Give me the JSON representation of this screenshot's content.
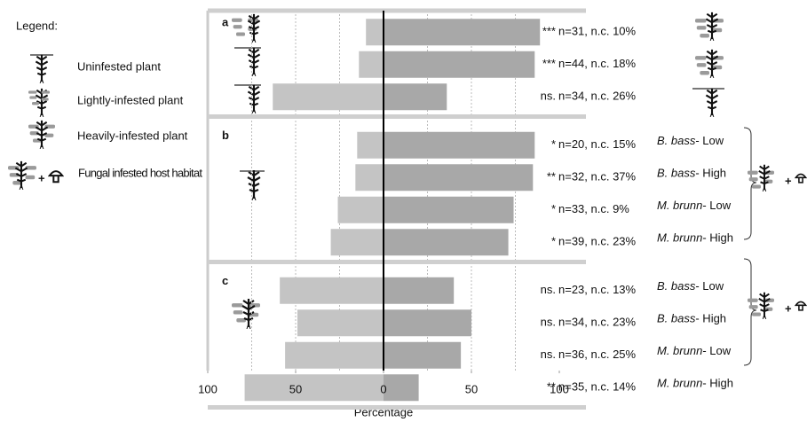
{
  "chart_data": {
    "type": "diverging-bar",
    "xlabel": "Percentage",
    "xlim": [
      -100,
      100
    ],
    "xticks": [
      {
        "value": -100,
        "label": "100"
      },
      {
        "value": -50,
        "label": "50"
      },
      0,
      50,
      {
        "value": 100,
        "label": "100"
      }
    ],
    "xgrid": [
      -75,
      -50,
      -25,
      25,
      50,
      75
    ],
    "panels": [
      {
        "label": "a",
        "rows": 3
      },
      {
        "label": "b",
        "rows": 4
      },
      {
        "label": "c",
        "rows": 4
      }
    ],
    "series": [
      {
        "color": "#c4c4c4",
        "values": [
          10,
          14,
          63,
          15,
          16,
          26,
          30,
          59,
          49,
          56,
          79
        ]
      },
      {
        "color": "#a8a8a8",
        "values": [
          89,
          86,
          36,
          86,
          85,
          74,
          71,
          40,
          50,
          44,
          20
        ]
      }
    ],
    "significance": [
      "***",
      "***",
      "ns.",
      "*",
      "**",
      "*",
      "*",
      "ns.",
      "ns.",
      "ns.",
      "**"
    ],
    "counts": [
      "n=31, n.c. 10%",
      "n=44, n.c. 18%",
      "n=34, n.c. 26%",
      "n=20, n.c. 15%",
      "n=32, n.c. 37%",
      "n=33, n.c. 9%",
      "n=39, n.c. 23%",
      "n=23, n.c. 13%",
      "n=34, n.c. 23%",
      "n=36, n.c. 25%",
      "n=35, n.c. 14%"
    ],
    "treatments": [
      null,
      null,
      null,
      {
        "species": "B. bass",
        "level": "- Low"
      },
      {
        "species": "B. bass",
        "level": "- High"
      },
      {
        "species": "M. brunn",
        "level": "- Low"
      },
      {
        "species": "M. brunn",
        "level": "- High"
      },
      {
        "species": "B. bass",
        "level": "- Low"
      },
      {
        "species": "B. bass",
        "level": "- High"
      },
      {
        "species": "M. brunn",
        "level": "- Low"
      },
      {
        "species": "M. brunn",
        "level": "- High"
      }
    ],
    "legend": {
      "title": "Legend:",
      "items": [
        "Uninfested plant",
        "Lightly-infested plant",
        "Heavily-infested plant",
        "Fungal infested host habitat"
      ]
    }
  }
}
